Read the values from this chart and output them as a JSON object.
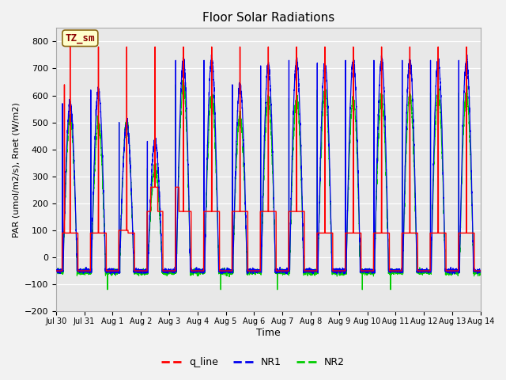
{
  "title": "Floor Solar Radiations",
  "xlabel": "Time",
  "ylabel": "PAR (umol/m2/s), Rnet (W/m2)",
  "ylim": [
    -200,
    850
  ],
  "yticks": [
    -200,
    -100,
    0,
    100,
    200,
    300,
    400,
    500,
    600,
    700,
    800
  ],
  "n_days": 15,
  "annotation_text": "TZ_sm",
  "annotation_bg": "#FFFFCC",
  "annotation_border": "#8B0000",
  "plot_bg_color": "#E8E8E8",
  "fig_bg_color": "#F2F2F2",
  "q_line_color": "#FF0000",
  "nr1_color": "#0000EE",
  "nr2_color": "#00CC00",
  "legend_labels": [
    "q_line",
    "NR1",
    "NR2"
  ],
  "xtick_labels": [
    "Jul 30",
    "Jul 31",
    "Aug 1",
    "Aug 2",
    "Aug 3",
    "Aug 4",
    "Aug 5",
    "Aug 6",
    "Aug 7",
    "Aug 8",
    "Aug 9",
    "Aug 10",
    "Aug 11",
    "Aug 12",
    "Aug 13",
    "Aug 14"
  ]
}
